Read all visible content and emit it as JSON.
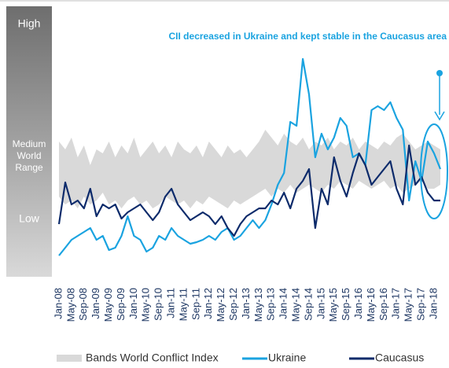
{
  "chart_data": {
    "type": "line",
    "title": "CII decreased in Ukraine and kept stable in the Caucasus area",
    "y_axis_labels": {
      "high": "High",
      "medium": [
        "Medium",
        "World",
        "Range"
      ],
      "low": "Low"
    },
    "categories": [
      "Jan-08",
      null,
      "May-08",
      null,
      "Sep-08",
      null,
      "Jan-09",
      null,
      "May-09",
      null,
      "Sep-09",
      null,
      "Jan-10",
      null,
      "May-10",
      null,
      "Sep-10",
      null,
      "Jan-11",
      null,
      "May-11",
      null,
      "Sep-11",
      null,
      "Jan-12",
      null,
      "May-12",
      null,
      "Sep-12",
      null,
      "Jan-13",
      null,
      "May-13",
      null,
      "Sep-13",
      null,
      "Jan-14",
      null,
      "May-14",
      null,
      "Sep-14",
      null,
      "Jan-15",
      null,
      "May-15",
      null,
      "Sep-15",
      null,
      "Jan-16",
      null,
      "May-16",
      null,
      "Sep-16",
      null,
      "Jan-17",
      null,
      "May-17",
      null,
      "Sep-17",
      null,
      "Jan-18",
      null
    ],
    "ylim": [
      0,
      340
    ],
    "band": {
      "name": "Bands World Conflict Index",
      "color": "#d9d9d9",
      "upper": [
        170,
        160,
        175,
        150,
        165,
        140,
        160,
        155,
        170,
        150,
        165,
        155,
        175,
        150,
        160,
        170,
        155,
        165,
        150,
        170,
        160,
        155,
        165,
        150,
        170,
        160,
        150,
        165,
        155,
        160,
        150,
        160,
        170,
        185,
        175,
        165,
        180,
        170,
        165,
        175,
        160,
        170,
        165,
        175,
        160,
        170,
        165,
        175,
        160,
        170,
        165,
        160,
        170,
        165,
        175,
        180,
        170,
        160,
        165,
        170,
        165,
        160
      ],
      "lower": [
        100,
        90,
        95,
        85,
        100,
        90,
        95,
        105,
        90,
        95,
        85,
        95,
        100,
        90,
        95,
        85,
        90,
        100,
        95,
        90,
        95,
        85,
        95,
        90,
        100,
        95,
        90,
        85,
        95,
        90,
        95,
        100,
        105,
        110,
        100,
        110,
        105,
        115,
        105,
        110,
        115,
        110,
        105,
        115,
        110,
        120,
        115,
        110,
        120,
        115,
        110,
        115,
        120,
        110,
        115,
        105,
        110,
        115,
        120,
        110,
        110,
        115
      ]
    },
    "series": [
      {
        "name": "Ukraine",
        "color": "#1aa3e0",
        "values": [
          25,
          35,
          45,
          50,
          55,
          60,
          45,
          50,
          32,
          35,
          50,
          75,
          50,
          45,
          30,
          35,
          50,
          45,
          60,
          50,
          45,
          40,
          42,
          45,
          50,
          45,
          55,
          60,
          45,
          50,
          60,
          70,
          60,
          70,
          90,
          115,
          130,
          195,
          190,
          275,
          230,
          150,
          180,
          160,
          175,
          200,
          190,
          150,
          155,
          140,
          210,
          215,
          210,
          220,
          200,
          185,
          95,
          145,
          120,
          170,
          155,
          135
        ]
      },
      {
        "name": "Caucasus",
        "color": "#0d2b6b",
        "values": [
          65,
          118,
          90,
          95,
          85,
          110,
          75,
          90,
          85,
          90,
          72,
          80,
          85,
          90,
          80,
          70,
          80,
          100,
          110,
          90,
          80,
          70,
          75,
          80,
          75,
          65,
          75,
          60,
          50,
          65,
          75,
          80,
          85,
          85,
          95,
          90,
          105,
          85,
          110,
          120,
          135,
          60,
          110,
          90,
          150,
          120,
          100,
          130,
          155,
          140,
          115,
          125,
          135,
          145,
          110,
          90,
          165,
          115,
          125,
          105,
          95,
          95
        ]
      }
    ]
  }
}
